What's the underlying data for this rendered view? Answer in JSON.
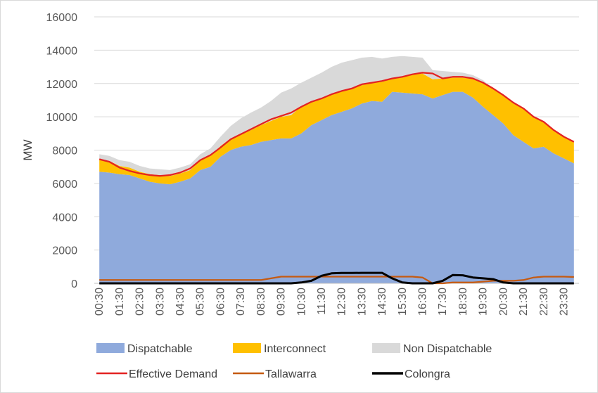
{
  "chart_data": {
    "type": "area",
    "title": "",
    "ylabel": "MW",
    "xlabel": "",
    "ylim": [
      0,
      16000
    ],
    "yticks": [
      0,
      2000,
      4000,
      6000,
      8000,
      10000,
      12000,
      14000,
      16000
    ],
    "grid": true,
    "legend_position": "bottom",
    "x": [
      "00:30",
      "01:00",
      "01:30",
      "02:00",
      "02:30",
      "03:00",
      "03:30",
      "04:00",
      "04:30",
      "05:00",
      "05:30",
      "06:00",
      "06:30",
      "07:00",
      "07:30",
      "08:00",
      "08:30",
      "09:00",
      "09:30",
      "10:00",
      "10:30",
      "11:00",
      "11:30",
      "12:00",
      "12:30",
      "13:00",
      "13:30",
      "14:00",
      "14:30",
      "15:00",
      "15:30",
      "16:00",
      "16:30",
      "17:00",
      "17:30",
      "18:00",
      "18:30",
      "19:00",
      "19:30",
      "20:00",
      "20:30",
      "21:00",
      "21:30",
      "22:00",
      "22:30",
      "23:00",
      "23:30",
      "00:00"
    ],
    "xtick_labels": [
      "00:30",
      "01:30",
      "02:30",
      "03:30",
      "04:30",
      "05:30",
      "06:30",
      "07:30",
      "08:30",
      "09:30",
      "10:30",
      "11:30",
      "12:30",
      "13:30",
      "14:30",
      "15:30",
      "16:30",
      "17:30",
      "18:30",
      "19:30",
      "20:30",
      "21:30",
      "22:30",
      "23:30"
    ],
    "stacked_areas": [
      {
        "name": "Dispatchable",
        "color": "#8faadc",
        "values": [
          6700,
          6650,
          6550,
          6500,
          6300,
          6100,
          6000,
          5950,
          6100,
          6300,
          6800,
          7000,
          7600,
          8000,
          8200,
          8300,
          8500,
          8600,
          8700,
          8700,
          9000,
          9500,
          9800,
          10100,
          10300,
          10500,
          10800,
          10950,
          10900,
          11500,
          11450,
          11400,
          11350,
          11100,
          11300,
          11500,
          11500,
          11150,
          10600,
          10100,
          9600,
          8900,
          8500,
          8100,
          8200,
          7800,
          7500,
          7200
        ]
      },
      {
        "name": "Interconnect",
        "color": "#ffc000",
        "values": [
          750,
          700,
          500,
          450,
          400,
          450,
          500,
          500,
          500,
          500,
          600,
          650,
          650,
          700,
          750,
          900,
          1000,
          1150,
          1300,
          1400,
          1650,
          1400,
          1300,
          1250,
          1250,
          1250,
          1100,
          1100,
          1200,
          800,
          950,
          1150,
          1250,
          1150,
          1000,
          850,
          850,
          1150,
          1450,
          1600,
          1700,
          1900,
          2000,
          1900,
          1500,
          1400,
          1300,
          1300
        ]
      },
      {
        "name": "Non Dispatchable",
        "color": "#d9d9d9",
        "values": [
          300,
          300,
          350,
          350,
          350,
          350,
          350,
          350,
          350,
          350,
          350,
          450,
          550,
          750,
          950,
          1050,
          1050,
          1200,
          1450,
          1600,
          1400,
          1450,
          1550,
          1650,
          1700,
          1650,
          1650,
          1550,
          1400,
          1300,
          1250,
          1050,
          950,
          550,
          450,
          350,
          300,
          200,
          150,
          0,
          0,
          0,
          0,
          0,
          0,
          0,
          0,
          0
        ]
      }
    ],
    "lines": [
      {
        "name": "Effective Demand",
        "color": "#e32322",
        "values": [
          7450,
          7300,
          6950,
          6750,
          6600,
          6500,
          6450,
          6500,
          6650,
          6900,
          7400,
          7700,
          8150,
          8650,
          8950,
          9250,
          9550,
          9850,
          10050,
          10250,
          10600,
          10900,
          11100,
          11350,
          11550,
          11700,
          11950,
          12050,
          12150,
          12300,
          12400,
          12550,
          12650,
          12600,
          12300,
          12400,
          12400,
          12300,
          12050,
          11700,
          11300,
          10850,
          10500,
          10000,
          9700,
          9200,
          8800,
          8500
        ]
      },
      {
        "name": "Tallawarra",
        "color": "#c55a11",
        "values": [
          200,
          200,
          200,
          200,
          200,
          200,
          200,
          200,
          200,
          200,
          200,
          200,
          200,
          200,
          200,
          200,
          200,
          300,
          400,
          400,
          400,
          400,
          400,
          400,
          400,
          400,
          400,
          400,
          400,
          400,
          400,
          400,
          350,
          0,
          0,
          50,
          50,
          50,
          100,
          150,
          150,
          150,
          200,
          350,
          400,
          400,
          400,
          380
        ]
      },
      {
        "name": "Colongra",
        "color": "#000000",
        "values": [
          0,
          0,
          0,
          0,
          0,
          0,
          0,
          0,
          0,
          0,
          0,
          0,
          0,
          0,
          0,
          0,
          0,
          0,
          0,
          0,
          50,
          150,
          450,
          600,
          620,
          620,
          630,
          630,
          630,
          300,
          50,
          0,
          0,
          0,
          150,
          500,
          480,
          350,
          300,
          250,
          50,
          0,
          0,
          0,
          0,
          0,
          0,
          0
        ]
      }
    ],
    "legend": [
      {
        "name": "Dispatchable",
        "kind": "area",
        "color": "#8faadc"
      },
      {
        "name": "Interconnect",
        "kind": "area",
        "color": "#ffc000"
      },
      {
        "name": "Non Dispatchable",
        "kind": "area",
        "color": "#d9d9d9"
      },
      {
        "name": "Effective Demand",
        "kind": "line",
        "color": "#e32322"
      },
      {
        "name": "Tallawarra",
        "kind": "line",
        "color": "#c55a11"
      },
      {
        "name": "Colongra",
        "kind": "line",
        "color": "#000000"
      }
    ]
  }
}
